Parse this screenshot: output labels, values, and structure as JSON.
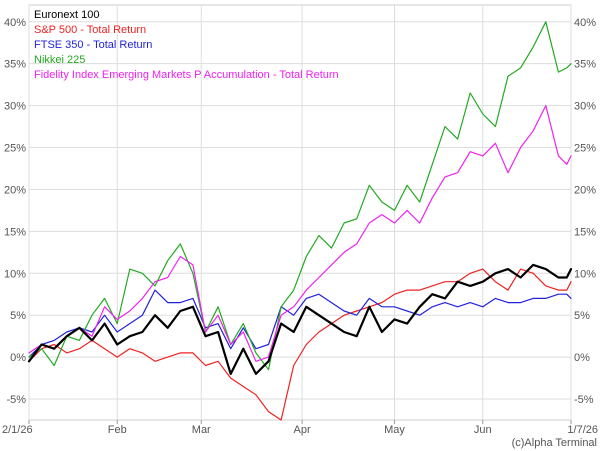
{
  "chart_data": {
    "type": "line",
    "title": "",
    "xlabel": "",
    "ylabel": "",
    "ylim": [
      -7.5,
      42
    ],
    "y_ticks": [
      -5,
      0,
      5,
      10,
      15,
      20,
      25,
      30,
      35,
      40
    ],
    "y_tick_labels": [
      "-5%",
      "0%",
      "5%",
      "10%",
      "15%",
      "20%",
      "25%",
      "30%",
      "35%",
      "40%"
    ],
    "x_tick_labels": [
      {
        "label": "2/1/26",
        "t": 0
      },
      {
        "label": "Feb",
        "t": 21
      },
      {
        "label": "Mar",
        "t": 41
      },
      {
        "label": "Apr",
        "t": 65
      },
      {
        "label": "May",
        "t": 87
      },
      {
        "label": "Jun",
        "t": 108
      },
      {
        "label": "1/7/26",
        "t": 129
      }
    ],
    "grid": true,
    "legend_position": "top-left",
    "credit": "(c)Alpha Terminal",
    "series": [
      {
        "name": "Euronext 100",
        "color": "#000000",
        "width": 2.2,
        "x": [
          0,
          3,
          6,
          9,
          12,
          15,
          18,
          21,
          24,
          27,
          30,
          33,
          36,
          39,
          42,
          45,
          48,
          51,
          54,
          57,
          60,
          63,
          66,
          69,
          72,
          75,
          78,
          81,
          84,
          87,
          90,
          93,
          96,
          99,
          102,
          105,
          108,
          111,
          114,
          117,
          120,
          123,
          126,
          128,
          129
        ],
        "values": [
          -0.5,
          1.5,
          1.0,
          2.5,
          3.5,
          2.0,
          4.0,
          1.5,
          2.5,
          3.0,
          5.0,
          3.5,
          5.5,
          6.0,
          2.5,
          3.0,
          -2.0,
          1.0,
          -2.0,
          -0.5,
          4.0,
          3.0,
          6.0,
          5.0,
          4.0,
          3.0,
          2.5,
          6.0,
          3.0,
          4.5,
          4.0,
          6.0,
          7.5,
          7.0,
          9.0,
          8.5,
          9.0,
          10.0,
          10.5,
          9.5,
          11.0,
          10.5,
          9.5,
          9.5,
          10.5
        ]
      },
      {
        "name": "S&P 500 - Total Return",
        "color": "#ee2222",
        "width": 1.2,
        "x": [
          0,
          3,
          6,
          9,
          12,
          15,
          18,
          21,
          24,
          27,
          30,
          33,
          36,
          39,
          42,
          45,
          48,
          51,
          54,
          57,
          60,
          63,
          66,
          69,
          72,
          75,
          78,
          81,
          84,
          87,
          90,
          93,
          96,
          99,
          102,
          105,
          108,
          111,
          114,
          117,
          120,
          123,
          126,
          128,
          129
        ],
        "values": [
          -0.5,
          1.0,
          1.5,
          0.5,
          1.0,
          2.0,
          1.0,
          0.0,
          1.0,
          0.5,
          -0.5,
          0.0,
          0.5,
          0.5,
          -1.0,
          -0.5,
          -2.5,
          -3.5,
          -4.5,
          -6.5,
          -7.5,
          -1.0,
          1.5,
          3.0,
          4.0,
          5.0,
          5.5,
          6.0,
          6.5,
          7.5,
          8.0,
          8.0,
          8.5,
          9.0,
          9.0,
          10.0,
          10.5,
          9.0,
          8.0,
          10.5,
          10.0,
          8.5,
          8.0,
          8.0,
          9.0
        ]
      },
      {
        "name": "FTSE 350 - Total Return",
        "color": "#2222dd",
        "width": 1.2,
        "x": [
          0,
          3,
          6,
          9,
          12,
          15,
          18,
          21,
          24,
          27,
          30,
          33,
          36,
          39,
          42,
          45,
          48,
          51,
          54,
          57,
          60,
          63,
          66,
          69,
          72,
          75,
          78,
          81,
          84,
          87,
          90,
          93,
          96,
          99,
          102,
          105,
          108,
          111,
          114,
          117,
          120,
          123,
          126,
          128,
          129
        ],
        "values": [
          0.0,
          1.5,
          2.0,
          3.0,
          3.5,
          3.0,
          5.0,
          3.0,
          4.0,
          5.0,
          8.0,
          6.5,
          6.5,
          7.0,
          3.5,
          4.0,
          1.0,
          3.5,
          1.0,
          1.5,
          6.0,
          5.0,
          7.0,
          7.5,
          6.5,
          5.5,
          5.0,
          7.0,
          6.0,
          6.0,
          5.5,
          5.0,
          6.0,
          6.5,
          6.0,
          6.5,
          6.0,
          7.0,
          6.5,
          6.5,
          7.0,
          7.0,
          7.5,
          7.5,
          7.0
        ]
      },
      {
        "name": "Nikkei 225",
        "color": "#22aa22",
        "width": 1.2,
        "x": [
          0,
          3,
          6,
          9,
          12,
          15,
          18,
          21,
          24,
          27,
          30,
          33,
          36,
          39,
          42,
          45,
          48,
          51,
          54,
          57,
          60,
          63,
          66,
          69,
          72,
          75,
          78,
          81,
          84,
          87,
          90,
          93,
          96,
          99,
          102,
          105,
          108,
          111,
          114,
          117,
          120,
          123,
          126,
          128,
          129
        ],
        "values": [
          0.0,
          1.0,
          -1.0,
          2.5,
          2.0,
          5.0,
          7.0,
          4.0,
          10.5,
          10.0,
          8.5,
          11.5,
          13.5,
          10.0,
          3.0,
          6.0,
          1.5,
          4.0,
          0.5,
          -1.5,
          6.0,
          8.0,
          12.0,
          14.5,
          13.0,
          16.0,
          16.5,
          20.5,
          18.5,
          17.5,
          20.5,
          18.5,
          23.0,
          27.5,
          26.0,
          31.5,
          29.0,
          27.5,
          33.5,
          34.5,
          37.0,
          40.0,
          34.0,
          34.5,
          35.0
        ]
      },
      {
        "name": "Fidelity Index Emerging Markets P Accumulation - Total Return",
        "color": "#ee22ee",
        "width": 1.2,
        "x": [
          0,
          3,
          6,
          9,
          12,
          15,
          18,
          21,
          24,
          27,
          30,
          33,
          36,
          39,
          42,
          45,
          48,
          51,
          54,
          57,
          60,
          63,
          66,
          69,
          72,
          75,
          78,
          81,
          84,
          87,
          90,
          93,
          96,
          99,
          102,
          105,
          108,
          111,
          114,
          117,
          120,
          123,
          126,
          128,
          129
        ],
        "values": [
          0.5,
          1.5,
          1.0,
          2.5,
          3.5,
          2.5,
          6.0,
          4.5,
          5.5,
          7.0,
          9.0,
          9.5,
          12.0,
          11.0,
          3.0,
          5.0,
          1.5,
          3.0,
          -0.5,
          0.0,
          5.0,
          6.0,
          8.0,
          9.5,
          11.0,
          12.5,
          13.5,
          16.0,
          17.0,
          16.0,
          17.5,
          16.0,
          19.0,
          21.5,
          22.0,
          24.5,
          24.0,
          25.5,
          22.0,
          25.0,
          27.0,
          30.0,
          24.0,
          23.0,
          24.0
        ]
      }
    ]
  }
}
